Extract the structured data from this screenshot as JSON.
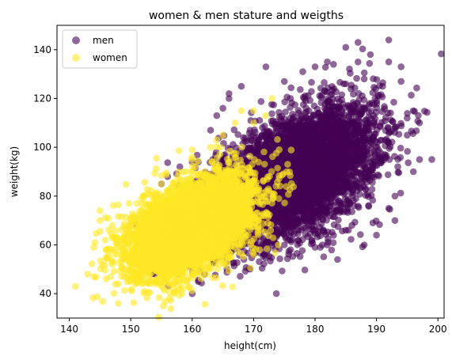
{
  "chart_data": {
    "type": "scatter",
    "title": "women & men stature and weigths",
    "xlabel": "height(cm)",
    "ylabel": "weight(kg)",
    "xlim": [
      138,
      201
    ],
    "ylim": [
      30,
      150
    ],
    "xticks": [
      140,
      150,
      160,
      170,
      180,
      190,
      200
    ],
    "yticks": [
      40,
      60,
      80,
      100,
      120,
      140
    ],
    "grid": false,
    "legend_position": "top-left",
    "marker_alpha": 0.6,
    "series": [
      {
        "name": "men",
        "color": "#440154",
        "cluster": {
          "x_mean": 177,
          "x_sd": 6.5,
          "y_mean": 89,
          "y_sd": 13.5,
          "correlation": 0.48,
          "count": 5000
        },
        "points": [
          [
            192,
            144
          ],
          [
            187,
            143
          ],
          [
            185,
            141
          ],
          [
            189,
            138
          ],
          [
            192,
            135
          ],
          [
            187,
            135
          ],
          [
            182,
            135
          ],
          [
            183,
            134
          ],
          [
            178,
            131
          ],
          [
            172,
            133
          ],
          [
            194,
            133
          ],
          [
            180,
            133
          ],
          [
            166,
            120
          ],
          [
            165,
            116
          ],
          [
            164,
            113
          ],
          [
            163,
            107
          ],
          [
            161,
            94
          ],
          [
            160,
            94
          ],
          [
            158,
            92
          ],
          [
            156,
            88
          ],
          [
            155,
            85
          ],
          [
            155,
            68
          ],
          [
            154,
            48
          ],
          [
            160,
            40
          ],
          [
            161,
            45
          ],
          [
            162,
            48
          ],
          [
            157,
            57
          ],
          [
            158,
            60
          ],
          [
            165,
            55
          ],
          [
            166,
            57
          ],
          [
            170,
            56
          ],
          [
            193,
            70
          ],
          [
            197,
            95
          ],
          [
            199,
            95
          ],
          [
            195,
            105
          ],
          [
            196,
            90
          ],
          [
            193,
            80
          ],
          [
            192,
            75
          ],
          [
            186,
            68
          ],
          [
            185,
            66
          ],
          [
            190,
            64
          ],
          [
            188,
            60
          ],
          [
            175,
            60
          ],
          [
            172,
            61
          ],
          [
            176,
            58
          ],
          [
            180,
            59
          ],
          [
            182,
            60
          ],
          [
            196,
            115
          ],
          [
            195,
            112
          ],
          [
            197,
            110
          ],
          [
            194,
            127
          ],
          [
            191,
            125
          ],
          [
            188,
            128
          ],
          [
            185,
            126
          ],
          [
            175,
            127
          ],
          [
            168,
            125
          ],
          [
            166,
            122
          ]
        ]
      },
      {
        "name": "women",
        "color": "#fde725",
        "cluster": {
          "x_mean": 160,
          "x_sd": 5,
          "y_mean": 68,
          "y_sd": 10,
          "correlation": 0.5,
          "count": 5000
        },
        "points": [
          [
            141,
            43
          ],
          [
            143,
            48
          ],
          [
            144,
            47
          ],
          [
            144,
            59
          ],
          [
            145,
            74
          ],
          [
            145,
            70
          ],
          [
            146,
            58
          ],
          [
            147,
            63
          ],
          [
            147,
            52
          ],
          [
            148,
            36
          ],
          [
            148,
            44
          ],
          [
            149,
            47
          ],
          [
            149,
            54
          ],
          [
            150,
            45
          ],
          [
            150,
            71
          ],
          [
            151,
            77
          ],
          [
            152,
            80
          ],
          [
            152,
            75
          ],
          [
            153,
            73
          ],
          [
            154,
            81
          ],
          [
            155,
            65
          ],
          [
            155,
            85
          ],
          [
            156,
            45
          ],
          [
            157,
            40
          ],
          [
            158,
            44
          ],
          [
            158,
            87
          ],
          [
            159,
            90
          ],
          [
            160,
            96
          ],
          [
            160,
            99
          ],
          [
            161,
            52
          ],
          [
            162,
            58
          ],
          [
            163,
            100
          ],
          [
            164,
            103
          ],
          [
            165,
            105
          ],
          [
            166,
            57
          ],
          [
            167,
            110
          ],
          [
            168,
            115
          ],
          [
            170,
            115
          ],
          [
            170,
            110
          ],
          [
            170,
            56
          ],
          [
            172,
            113
          ],
          [
            173,
            120
          ],
          [
            166,
            64
          ],
          [
            162,
            50
          ],
          [
            147,
            68
          ],
          [
            146,
            46
          ],
          [
            150,
            56
          ],
          [
            153,
            50
          ],
          [
            155,
            55
          ],
          [
            156,
            50
          ],
          [
            158,
            61
          ],
          [
            164,
            60
          ],
          [
            171,
            58
          ],
          [
            174,
            60
          ],
          [
            168,
            62
          ],
          [
            160,
            55
          ],
          [
            152,
            63
          ]
        ]
      }
    ]
  }
}
